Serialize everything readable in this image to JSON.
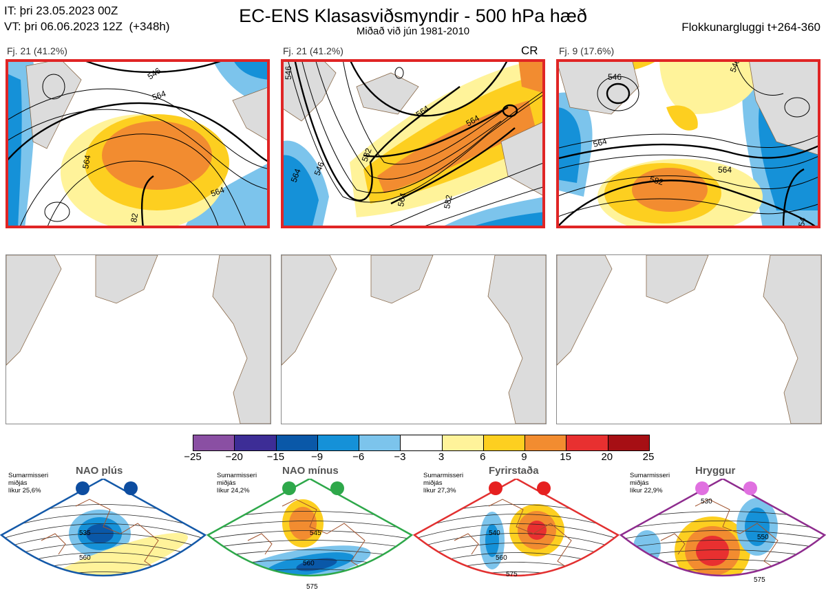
{
  "header": {
    "init_line": "IT: þri 23.05.2023 00Z",
    "valid_line": "VT: þri 06.06.2023 12Z  (+348h)",
    "title": "EC-ENS Klasasviðsmyndir - 500 hPa hæð",
    "subtitle": "Miðað við jún 1981-2010",
    "window": "Flokkunargluggi t+264-360"
  },
  "panels": [
    {
      "label": "Fj. 21 (41.2%)",
      "tag": "",
      "contours": [
        "546",
        "564",
        "564",
        "564",
        "82"
      ]
    },
    {
      "label": "Fj. 21 (41.2%)",
      "tag": "CR",
      "contours": [
        "546",
        "564",
        "564",
        "546",
        "564",
        "564",
        "582",
        "582"
      ]
    },
    {
      "label": "Fj. 9 (17.6%)",
      "tag": "",
      "contours": [
        "546",
        "546",
        "564",
        "564",
        "582",
        "54"
      ]
    }
  ],
  "colorbar": {
    "ticks": [
      "−25",
      "−20",
      "−15",
      "−9",
      "−6",
      "−3",
      "3",
      "6",
      "9",
      "15",
      "20",
      "25"
    ],
    "colors": [
      "#8a4fa3",
      "#3d2d96",
      "#0a58a8",
      "#1591d8",
      "#7cc4ec",
      "#ffffff",
      "#fff39a",
      "#fdcf20",
      "#f28c30",
      "#e83030",
      "#a60f14"
    ]
  },
  "regimes": [
    {
      "name": "NAO plús",
      "season": "Sumarmisseri",
      "median": "miðjás",
      "prob": "líkur 25,6%",
      "color": "#1459a8",
      "dot": "#0d4da0",
      "contours": [
        "535",
        "560"
      ]
    },
    {
      "name": "NAO mínus",
      "season": "Sumarmisseri",
      "median": "miðjás",
      "prob": "líkur 24,2%",
      "color": "#2ea84a",
      "dot": "#2ea84a",
      "contours": [
        "545",
        "560",
        "575"
      ]
    },
    {
      "name": "Fyrirstaða",
      "season": "Sumarmisseri",
      "median": "miðjás",
      "prob": "líkur 27,3%",
      "color": "#e23030",
      "dot": "#e62020",
      "contours": [
        "540",
        "560",
        "575"
      ]
    },
    {
      "name": "Hryggur",
      "season": "Sumarmisseri",
      "median": "miðjás",
      "prob": "líkur 22,9%",
      "color": "#8e2c8e",
      "dot": "#e070e0",
      "contours": [
        "530",
        "550",
        "575"
      ]
    }
  ]
}
